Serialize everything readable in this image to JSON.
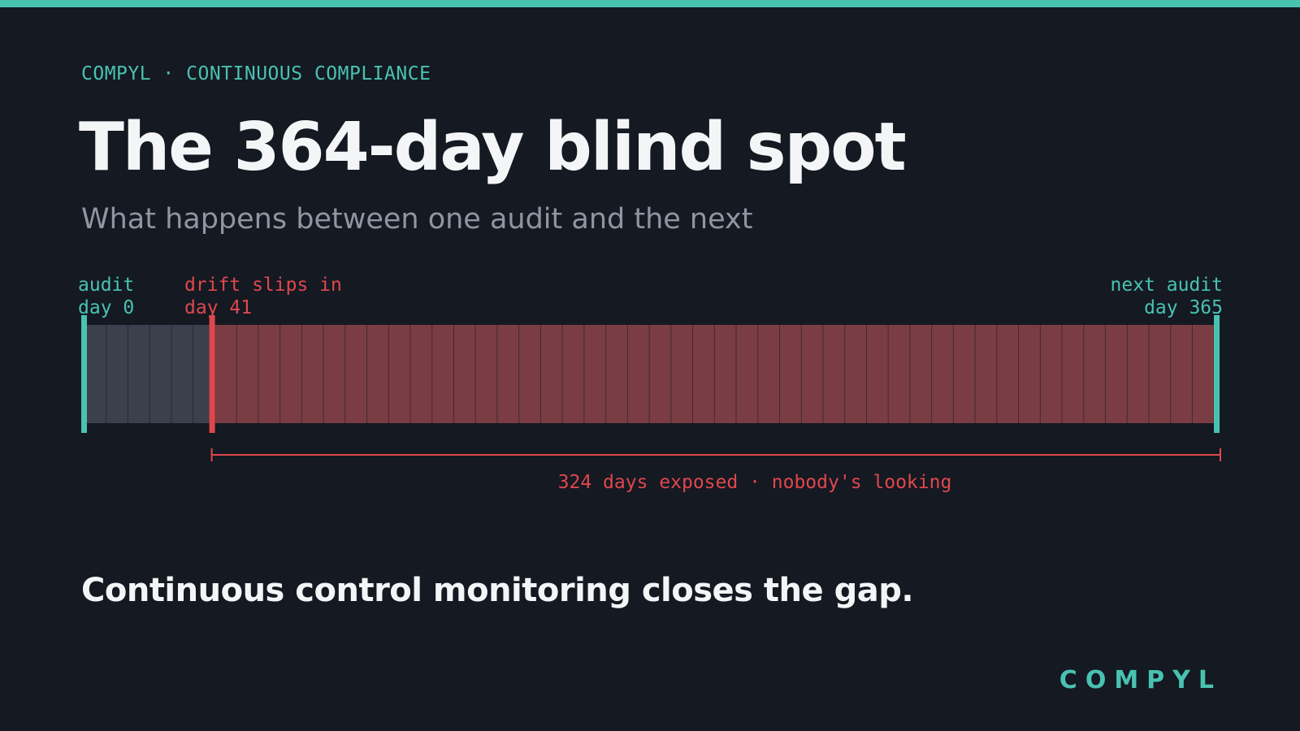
{
  "header": {
    "eyebrow": "COMPYL · CONTINUOUS COMPLIANCE",
    "title": "The 364-day blind spot",
    "subtitle": "What happens between one audit and the next"
  },
  "timeline": {
    "start_label": "audit",
    "start_day_label": "day 0",
    "drift_label": "drift slips in",
    "drift_day_label": "day 41",
    "end_label": "next audit",
    "end_day_label": "day 365",
    "start_day": 0,
    "drift_day": 41,
    "end_day": 365,
    "exposure_caption": "324 days exposed · nobody's looking"
  },
  "tagline": "Continuous control monitoring closes the gap.",
  "brand": "COMPYL",
  "colors": {
    "background": "#141922",
    "accent": "#49c2b1",
    "alert": "#e0474c",
    "safe_fill": "#3a414c",
    "exposed_fill": "#7a3d43",
    "title": "#f4f5f7",
    "muted": "#8f96a1"
  }
}
